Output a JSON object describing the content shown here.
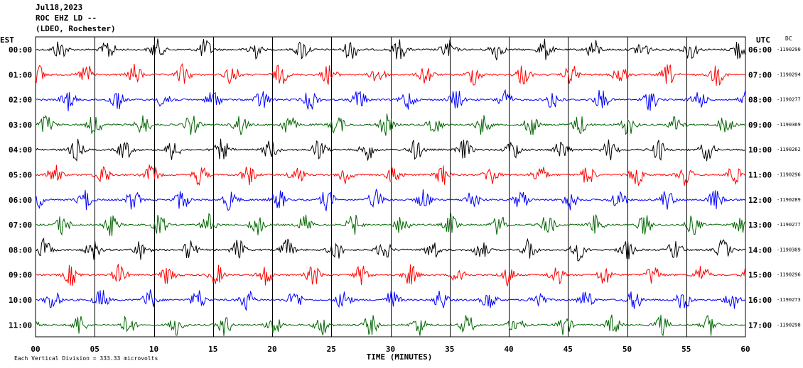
{
  "header": {
    "date": "Jul18,2023",
    "station": "ROC EHZ LD --",
    "network": "(LDEO, Rochester)"
  },
  "chart_data": {
    "type": "line",
    "title": "",
    "xlabel": "TIME (MINUTES)",
    "left_axis_label": "EST",
    "right_axis_label": "UTC",
    "dc_label": "DC",
    "xlim": [
      0,
      60
    ],
    "x_ticks": [
      "00",
      "05",
      "10",
      "15",
      "20",
      "25",
      "30",
      "35",
      "40",
      "45",
      "50",
      "55",
      "60"
    ],
    "grid_vertical_minutes": [
      5,
      10,
      15,
      20,
      25,
      30,
      35,
      40,
      45,
      50,
      55
    ],
    "trace_colors": [
      "#000000",
      "#ff0000",
      "#0000ff",
      "#006600"
    ],
    "rows": [
      {
        "est": "00:00",
        "utc": "06:00",
        "dc": "-1190290",
        "color": "#000000"
      },
      {
        "est": "01:00",
        "utc": "07:00",
        "dc": "-1190294",
        "color": "#ff0000"
      },
      {
        "est": "02:00",
        "utc": "08:00",
        "dc": "-1190277",
        "color": "#0000ff"
      },
      {
        "est": "03:00",
        "utc": "09:00",
        "dc": "-1190369",
        "color": "#006600"
      },
      {
        "est": "04:00",
        "utc": "10:00",
        "dc": "-1190262",
        "color": "#000000"
      },
      {
        "est": "05:00",
        "utc": "11:00",
        "dc": "-1190296",
        "color": "#ff0000"
      },
      {
        "est": "06:00",
        "utc": "12:00",
        "dc": "-1190289",
        "color": "#0000ff"
      },
      {
        "est": "07:00",
        "utc": "13:00",
        "dc": "-1190277",
        "color": "#006600"
      },
      {
        "est": "08:00",
        "utc": "14:00",
        "dc": "-1190309",
        "color": "#000000"
      },
      {
        "est": "09:00",
        "utc": "15:00",
        "dc": "-1190296",
        "color": "#ff0000"
      },
      {
        "est": "10:00",
        "utc": "16:00",
        "dc": "-1190273",
        "color": "#0000ff"
      },
      {
        "est": "11:00",
        "utc": "17:00",
        "dc": "-1190298",
        "color": "#006600"
      }
    ],
    "scale_note": "Each Vertical Division = 333.33 microvolts"
  }
}
